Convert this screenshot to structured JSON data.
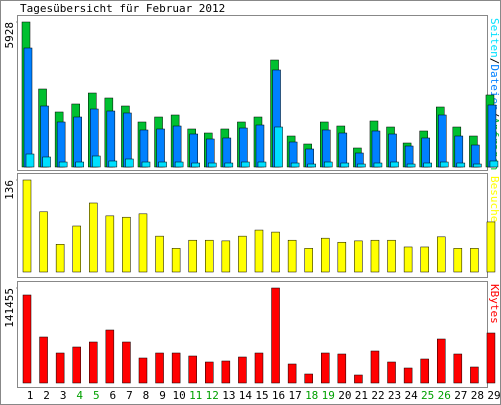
{
  "chart_data": {
    "type": "bar",
    "title": "Tagesübersicht für Februar 2012",
    "categories": [
      "1",
      "2",
      "3",
      "4",
      "5",
      "6",
      "7",
      "8",
      "9",
      "10",
      "11",
      "12",
      "13",
      "14",
      "15",
      "16",
      "17",
      "18",
      "19",
      "20",
      "21",
      "22",
      "23",
      "24",
      "25",
      "26",
      "27",
      "28",
      "29"
    ],
    "category_colors": [
      "#000000",
      "#000000",
      "#000000",
      "#00a000",
      "#00a000",
      "#000000",
      "#000000",
      "#000000",
      "#000000",
      "#000000",
      "#00a000",
      "#00a000",
      "#000000",
      "#000000",
      "#000000",
      "#000000",
      "#000000",
      "#00a000",
      "#00a000",
      "#000000",
      "#000000",
      "#000000",
      "#000000",
      "#000000",
      "#00a000",
      "#00a000",
      "#000000",
      "#000000",
      "#000000"
    ],
    "legend_separator": "/",
    "panels": [
      {
        "ylim": [
          0,
          5928
        ],
        "yticks": [
          5928
        ],
        "series": [
          {
            "name": "Anfragen",
            "color": "#00c030",
            "values": [
              5928,
              3189,
              2249,
              2576,
              3025,
              2821,
              2494,
              1840,
              2044,
              2126,
              1554,
              1390,
              1554,
              1840,
              2044,
              4374,
              1267,
              940,
              1840,
              1676,
              777,
              1881,
              1635,
              981,
              1472,
              2453,
              1635,
              1267,
              2944
            ]
          },
          {
            "name": "Dateien",
            "color": "#0080ff",
            "values": [
              4865,
              2494,
              1840,
              2044,
              2371,
              2289,
              2208,
              1513,
              1554,
              1676,
              1349,
              1145,
              1186,
              1594,
              1717,
              3966,
              1022,
              736,
              1513,
              1390,
              572,
              1472,
              1349,
              858,
              1186,
              2126,
              1267,
              899,
              2535
            ]
          },
          {
            "name": "Seiten",
            "color": "#00e0ff",
            "values": [
              531,
              409,
              204,
              204,
              450,
              245,
              327,
              204,
              204,
              204,
              163,
              163,
              163,
              204,
              204,
              1635,
              163,
              122,
              204,
              163,
              122,
              163,
              204,
              122,
              163,
              204,
              163,
              122,
              245
            ]
          }
        ]
      },
      {
        "ylim": [
          0,
          136
        ],
        "yticks": [
          136
        ],
        "series": [
          {
            "name": "Besuche",
            "color": "#ffff00",
            "values": [
              136,
              89,
              41,
              68,
              102,
              83,
              81,
              86,
              53,
              35,
              47,
              47,
              46,
              53,
              62,
              59,
              47,
              35,
              50,
              44,
              46,
              47,
              47,
              37,
              37,
              52,
              35,
              35,
              74
            ]
          }
        ]
      },
      {
        "ylim": [
          0,
          141455
        ],
        "yticks": [
          141455
        ],
        "series": [
          {
            "name": "KBytes",
            "color": "#ff0000",
            "values": [
              131040,
              68495,
              44672,
              53606,
              61051,
              78918,
              61051,
              37227,
              44672,
              44672,
              40205,
              31271,
              32760,
              38716,
              44672,
              141455,
              28293,
              13401,
              44672,
              43183,
              11912,
              47650,
              31271,
              22335,
              35738,
              65516,
              43183,
              23825,
              74450
            ]
          }
        ]
      }
    ]
  }
}
